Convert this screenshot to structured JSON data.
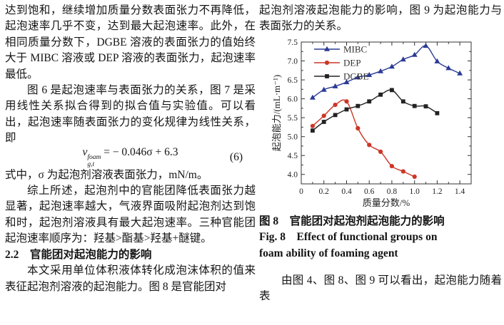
{
  "left": {
    "p1": "达到饱和，继续增加质量分数表面张力不再降低，起泡速率几乎不变，达到最大起泡速率。此外，在相同质量分数下，DGBE 溶液的表面张力的值始终大于 MIBC 溶液或 DEP 溶液的表面张力，起泡速率最低。",
    "p2": "图 6 是起泡速率与表面张力的关系，图 7 是采用线性关系拟合得到的拟合值与实验值。可以看出，起泡速率随表面张力的变化规律为线性关系，即",
    "eq": {
      "v": "v",
      "sup": "foam",
      "sub": "g,t",
      "rhs": "= − 0.046σ + 6.3",
      "num": "(6)"
    },
    "p3": "式中，σ 为起泡剂溶液表面张力，mN/m。",
    "p4": "综上所述，起泡剂中的官能团降低表面张力越显著，起泡速率越大，气液界面吸附起泡剂达到饱和时，起泡剂溶液具有最大起泡速率。三种官能团起泡速率顺序为：羟基>酯基>羟基+醚键。",
    "heading": "2.2　官能团对起泡能力的影响",
    "p5": "本文采用单位体积液体转化成泡沫体积的值来表征起泡剂溶液的起泡能力。图 8 是官能团对"
  },
  "right": {
    "p1": "起泡剂溶液起泡能力的影响，图 9 为起泡能力与表面张力的关系。",
    "caption_cn": "图 8　官能团对起泡剂起泡能力的影响",
    "caption_en1": "Fig. 8　Effect of functional groups on",
    "caption_en2": "foam ability of foaming agent",
    "p2": "由图 4、图 8、图 9 可以看出，起泡能力随着表"
  },
  "chart_data": {
    "type": "line",
    "xlabel": "质量分数/%",
    "ylabel": "起泡能力/(mL·m⁻¹)",
    "xlim": [
      0,
      1.5
    ],
    "ylim": [
      3.75,
      7.5
    ],
    "x_ticks": {
      "major": [
        0,
        0.2,
        0.4,
        0.6,
        0.8,
        1.0,
        1.2,
        1.4
      ],
      "labels": [
        "0",
        "0.2",
        "0.4",
        "0.6",
        "0.8",
        "1.0",
        "1.2",
        "1.4"
      ],
      "minor_step": 0.1
    },
    "y_ticks": {
      "major": [
        4.0,
        4.5,
        5.0,
        5.5,
        6.0,
        6.5,
        7.0,
        7.5
      ],
      "labels": [
        "4.0",
        "4.5",
        "5.0",
        "5.5",
        "6.0",
        "6.5",
        "7.0",
        "7.5"
      ],
      "minor_step": 0.25
    },
    "legend_position": "top-left-inside",
    "grid": false,
    "series": [
      {
        "name": "MIBC",
        "color": "#2b3a94",
        "marker": "triangle",
        "x": [
          0.1,
          0.2,
          0.3,
          0.4,
          0.5,
          0.6,
          0.7,
          0.8,
          0.9,
          1.0,
          1.1,
          1.2,
          1.3,
          1.4
        ],
        "values": [
          6.03,
          6.24,
          6.33,
          6.44,
          6.57,
          6.63,
          6.73,
          6.85,
          7.04,
          7.16,
          7.4,
          6.99,
          6.81,
          6.67
        ]
      },
      {
        "name": "DEP",
        "color": "#cc3626",
        "marker": "circle",
        "x": [
          0.1,
          0.2,
          0.3,
          0.4,
          0.5,
          0.6,
          0.7,
          0.8,
          0.9,
          1.0
        ],
        "values": [
          5.28,
          5.55,
          5.84,
          5.93,
          5.22,
          4.78,
          4.6,
          4.22,
          4.08,
          3.94
        ]
      },
      {
        "name": "DGBE",
        "color": "#232323",
        "marker": "square",
        "x": [
          0.1,
          0.2,
          0.3,
          0.4,
          0.5,
          0.6,
          0.7,
          0.8,
          0.9,
          1.0,
          1.1,
          1.2
        ],
        "values": [
          5.16,
          5.39,
          5.57,
          5.72,
          5.81,
          5.93,
          6.11,
          6.23,
          5.93,
          5.81,
          5.8,
          5.62
        ]
      }
    ]
  }
}
